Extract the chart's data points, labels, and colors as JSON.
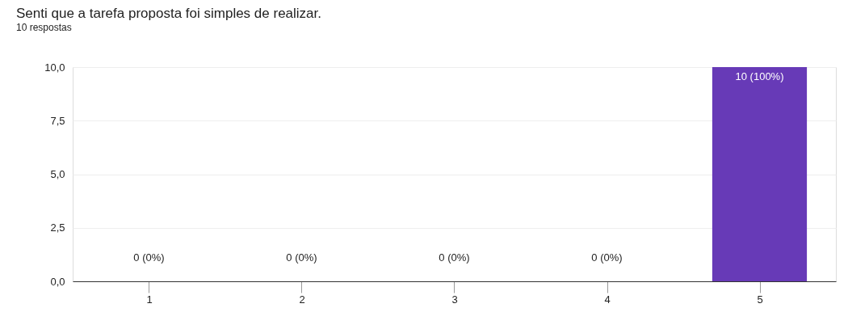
{
  "chart_data": {
    "type": "bar",
    "title": "Senti que a tarefa proposta foi simples de realizar.",
    "subtitle": "10 respostas",
    "categories": [
      "1",
      "2",
      "3",
      "4",
      "5"
    ],
    "values": [
      0,
      0,
      0,
      0,
      10
    ],
    "value_labels": [
      "0 (0%)",
      "0 (0%)",
      "0 (0%)",
      "0 (0%)",
      "10 (100%)"
    ],
    "color": "#673ab7",
    "ylim": [
      0,
      10
    ],
    "yticks": [
      {
        "value": 0,
        "label": "0,0"
      },
      {
        "value": 2.5,
        "label": "2,5"
      },
      {
        "value": 5,
        "label": "5,0"
      },
      {
        "value": 7.5,
        "label": "7,5"
      },
      {
        "value": 10,
        "label": "10,0"
      }
    ],
    "grid": "y"
  }
}
